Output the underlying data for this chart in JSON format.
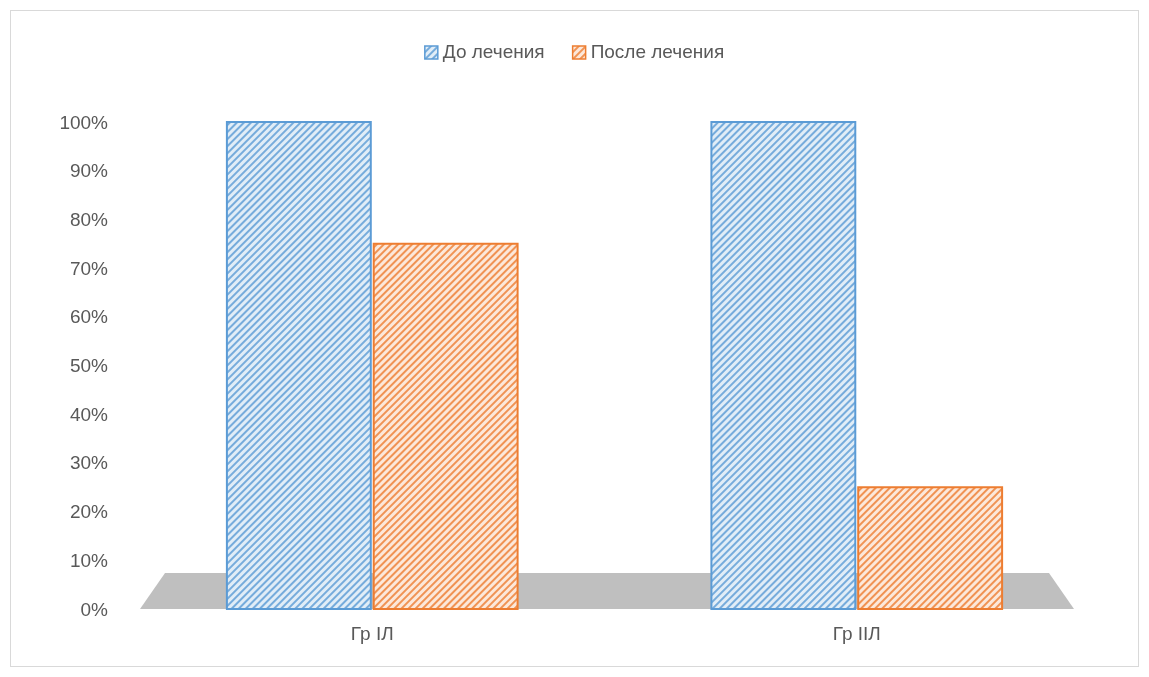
{
  "chart_data": {
    "type": "bar",
    "categories": [
      "Гр IЛ",
      "Гр IIЛ"
    ],
    "series": [
      {
        "name": "До лечения",
        "color": "#5b9bd5",
        "values": [
          100,
          100
        ]
      },
      {
        "name": "После лечения",
        "color": "#ed7d31",
        "values": [
          75,
          25
        ]
      }
    ],
    "ylim": [
      0,
      100
    ],
    "yticks": [
      {
        "value": 0,
        "label": "0%"
      },
      {
        "value": 10,
        "label": "10%"
      },
      {
        "value": 20,
        "label": "20%"
      },
      {
        "value": 30,
        "label": "30%"
      },
      {
        "value": 40,
        "label": "40%"
      },
      {
        "value": 50,
        "label": "50%"
      },
      {
        "value": 60,
        "label": "60%"
      },
      {
        "value": 70,
        "label": "70%"
      },
      {
        "value": 80,
        "label": "80%"
      },
      {
        "value": 90,
        "label": "90%"
      },
      {
        "value": 100,
        "label": "100%"
      }
    ],
    "grid": false,
    "legend": "top"
  }
}
